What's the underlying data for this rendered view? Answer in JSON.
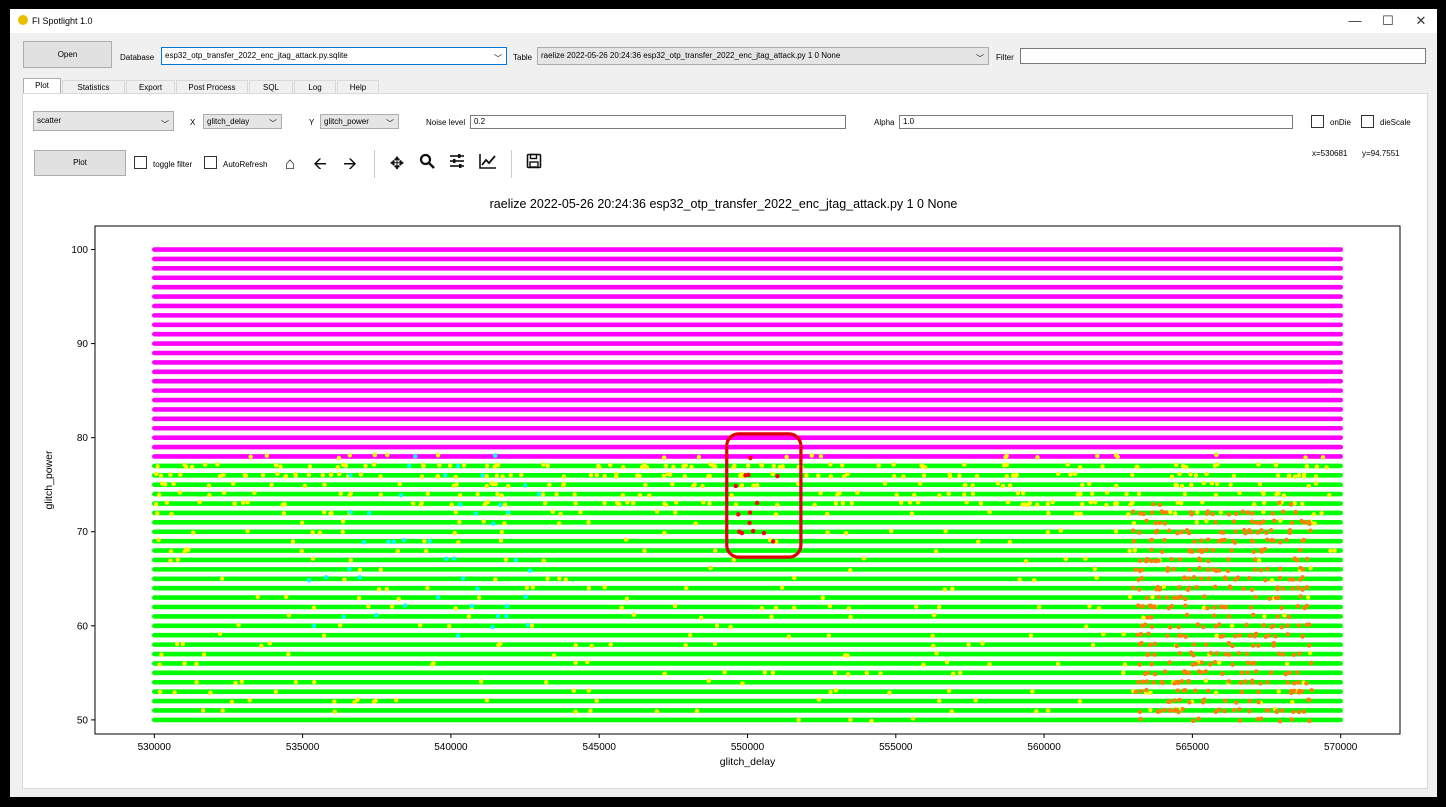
{
  "window": {
    "title": "FI Spotlight 1.0",
    "min_glyph": "—",
    "max_glyph": "☐",
    "close_glyph": "✕"
  },
  "top": {
    "open_label": "Open",
    "database_label": "Database",
    "database_value": "esp32_otp_transfer_2022_enc_jtag_attack.py.sqlite",
    "table_label": "Table",
    "table_value": "raelize 2022-05-26 20:24:36 esp32_otp_transfer_2022_enc_jtag_attack.py 1 0 None",
    "filter_label": "Filter",
    "filter_value": ""
  },
  "tabs": [
    "Plot",
    "Statistics",
    "Export",
    "Post Process",
    "SQL",
    "Log",
    "Help"
  ],
  "plot_controls": {
    "plot_type": "scatter",
    "x_label": "X",
    "x_value": "glitch_delay",
    "y_label": "Y",
    "y_value": "glitch_power",
    "noise_label": "Noise level",
    "noise_value": "0.2",
    "alpha_label": "Alpha",
    "alpha_value": "1.0",
    "ondie_label": "onDie",
    "diescale_label": "dieScale",
    "plot_button": "Plot",
    "toggle_filter_label": "toggle filter",
    "autorefresh_label": "AutoRefresh",
    "coord_x": "x=530681",
    "coord_y": "y=94.7551"
  },
  "toolbar_icons": [
    "home-icon",
    "back-arrow-icon",
    "forward-arrow-icon",
    "pan-icon",
    "zoom-icon",
    "configure-subplots-icon",
    "edit-axes-icon",
    "save-icon"
  ],
  "colors": {
    "magenta": "#ff00ff",
    "green": "#00ff00",
    "yellow": "#ffff00",
    "cyan": "#00ffff",
    "orange": "#ff7f00",
    "red": "#ff0000",
    "annotation": "#e00000"
  },
  "chart_data": {
    "type": "scatter",
    "title": "raelize 2022-05-26 20:24:36 esp32_otp_transfer_2022_enc_jtag_attack.py 1 0 None",
    "xlabel": "glitch_delay",
    "ylabel": "glitch_power",
    "xlim": [
      528000,
      572000
    ],
    "ylim": [
      48.5,
      102.5
    ],
    "xticks": [
      530000,
      535000,
      540000,
      545000,
      550000,
      555000,
      560000,
      565000,
      570000
    ],
    "yticks": [
      50,
      60,
      70,
      80,
      90,
      100
    ],
    "series": [
      {
        "color": "#ff00ff",
        "x_range": [
          530000,
          570000
        ],
        "y_values": [
          78,
          79,
          80,
          81,
          82,
          83,
          84,
          85,
          86,
          87,
          88,
          89,
          90,
          91,
          92,
          93,
          94,
          95,
          96,
          97,
          98,
          99,
          100
        ]
      },
      {
        "color": "#00ff00",
        "x_range": [
          530000,
          570000
        ],
        "y_values": [
          50,
          51,
          52,
          53,
          54,
          55,
          56,
          57,
          58,
          59,
          60,
          61,
          62,
          63,
          64,
          65,
          66,
          67,
          68,
          69,
          70,
          71,
          72,
          73,
          74,
          75,
          76,
          77
        ]
      },
      {
        "color": "#ffff00",
        "x_range": [
          530000,
          570000
        ],
        "y_range": [
          50,
          78
        ]
      },
      {
        "color": "#00ffff",
        "x_range": [
          535000,
          543000
        ],
        "y_range": [
          59,
          78
        ]
      },
      {
        "color": "#ff7f00",
        "x_range": [
          563000,
          569000
        ],
        "y_range": [
          50,
          73
        ]
      },
      {
        "color": "#ff0000",
        "x_range": [
          549500,
          551200
        ],
        "y_range": [
          69,
          78
        ]
      }
    ],
    "annotation": {
      "shape": "rounded-rectangle",
      "color": "#e00000",
      "x_range": [
        549300,
        551800
      ],
      "y_range": [
        67.3,
        80.4
      ]
    },
    "grid": false,
    "legend": "none"
  }
}
